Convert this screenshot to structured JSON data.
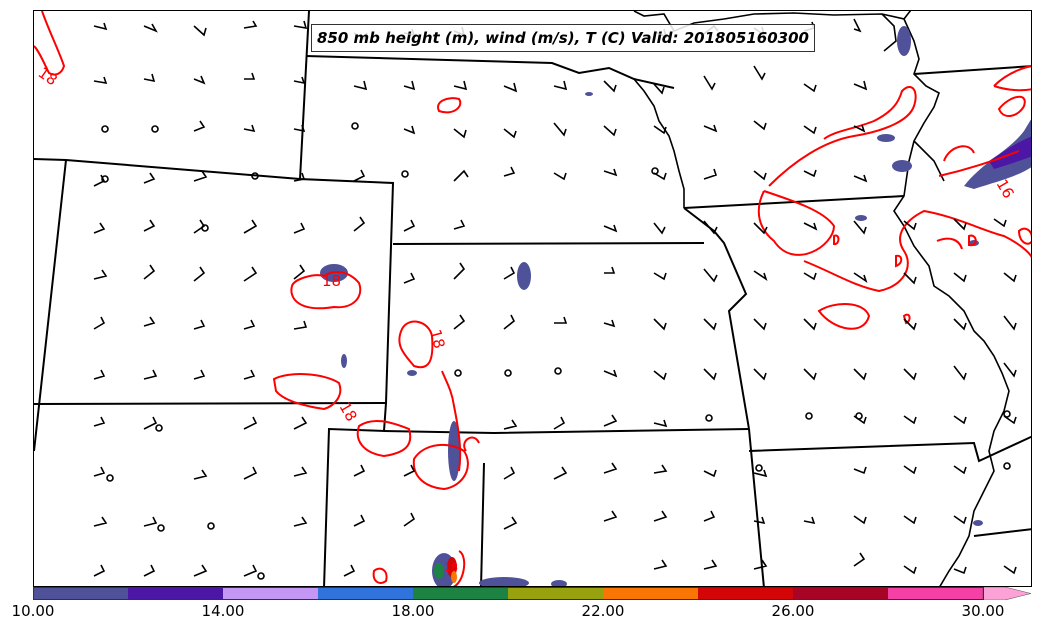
{
  "title": "850 mb height (m), wind (m/s), T (C) Valid: 201805160300",
  "contour_labels": [
    "18",
    "18",
    "18",
    "18",
    "18",
    "16"
  ],
  "colorbar": {
    "colors": [
      "#4f5299",
      "#4b17a4",
      "#c597f5",
      "#3173dd",
      "#1d8342",
      "#98a20e",
      "#f97604",
      "#d40507",
      "#a80425",
      "#f540a5",
      "#fca2d7"
    ],
    "tick_labels": [
      "10.00",
      "14.00",
      "18.00",
      "22.00",
      "26.00",
      "30.00"
    ],
    "tick_values": [
      10,
      14,
      18,
      22,
      26,
      30
    ],
    "range": [
      10,
      31
    ]
  },
  "colors": {
    "temperature_contour": "#ff0000",
    "boundaries": "#000000",
    "precip_fill": "#4f5299"
  }
}
